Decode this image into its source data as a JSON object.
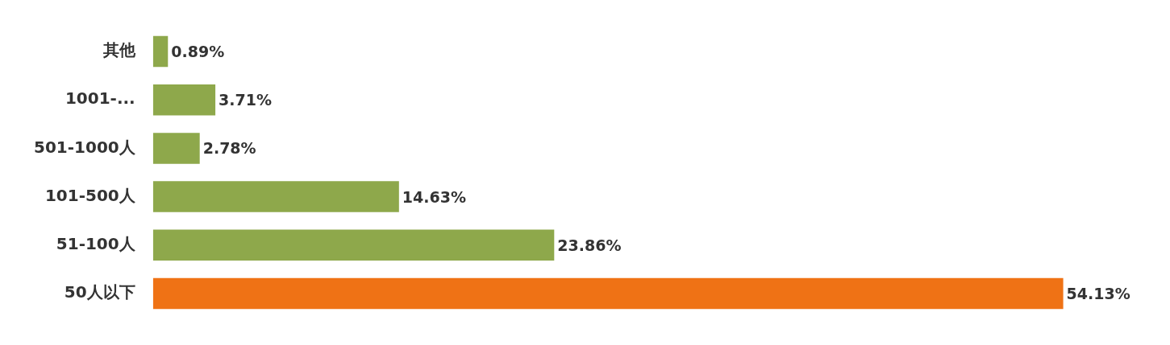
{
  "chart_data": {
    "type": "bar",
    "orientation": "horizontal",
    "categories": [
      "其他",
      "1001-...",
      "501-1000人",
      "101-500人",
      "51-100人",
      "50人以下"
    ],
    "values": [
      0.89,
      3.71,
      2.78,
      14.63,
      23.86,
      54.13
    ],
    "colors": [
      "#8ea84b",
      "#8ea84b",
      "#8ea84b",
      "#8ea84b",
      "#8ea84b",
      "#ef7215"
    ],
    "value_labels": [
      "0.89%",
      "3.71%",
      "2.78%",
      "14.63%",
      "23.86%",
      "54.13%"
    ],
    "tick_labels": "y"
  }
}
